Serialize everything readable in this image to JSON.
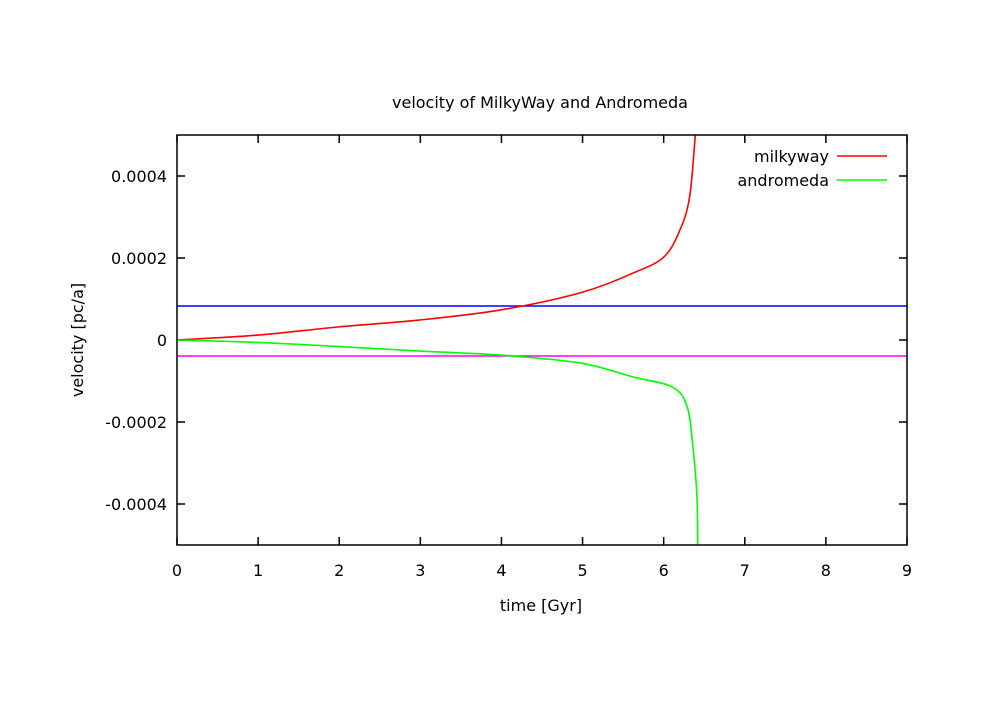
{
  "chart_data": {
    "type": "line",
    "title": "velocity of MilkyWay and Andromeda",
    "xlabel": "time [Gyr]",
    "ylabel": "velocity [pc/a]",
    "xlim": [
      0,
      9
    ],
    "ylim": [
      -0.0005,
      0.0005
    ],
    "xticks": [
      0,
      1,
      2,
      3,
      4,
      5,
      6,
      7,
      8,
      9
    ],
    "xtick_labels": [
      "0",
      "1",
      "2",
      "3",
      "4",
      "5",
      "6",
      "7",
      "8",
      "9"
    ],
    "yticks": [
      0.0004,
      0.0002,
      0,
      -0.0002,
      -0.0004
    ],
    "ytick_labels": [
      "0.0004",
      "0.0002",
      "0",
      "-0.0002",
      "-0.0004"
    ],
    "grid": false,
    "legend_position": "top-right",
    "series": [
      {
        "name": "milkyway",
        "color": "#ff0000",
        "x": [
          0,
          1,
          2,
          3,
          3.98,
          4.97,
          5.62,
          6.0,
          6.2,
          6.32,
          6.39
        ],
        "y": [
          0,
          1.2e-05,
          3.2e-05,
          4.9e-05,
          7.3e-05,
          0.000115,
          0.000163,
          0.000202,
          0.000268,
          0.000349,
          0.0005
        ]
      },
      {
        "name": "andromeda",
        "color": "#00ff00",
        "x": [
          0,
          1,
          2,
          3,
          4,
          4.97,
          5.62,
          6.11,
          6.29,
          6.36,
          6.41,
          6.42
        ],
        "y": [
          0,
          -6e-06,
          -1.6e-05,
          -2.7e-05,
          -3.7e-05,
          -5.6e-05,
          -9e-05,
          -0.000115,
          -0.000163,
          -0.00026,
          -0.00038,
          -0.0005
        ]
      }
    ],
    "reference_lines": [
      {
        "y": 8.3e-05,
        "color": "#0000ff"
      },
      {
        "y": -3.9e-05,
        "color": "#ff00ff"
      }
    ]
  }
}
